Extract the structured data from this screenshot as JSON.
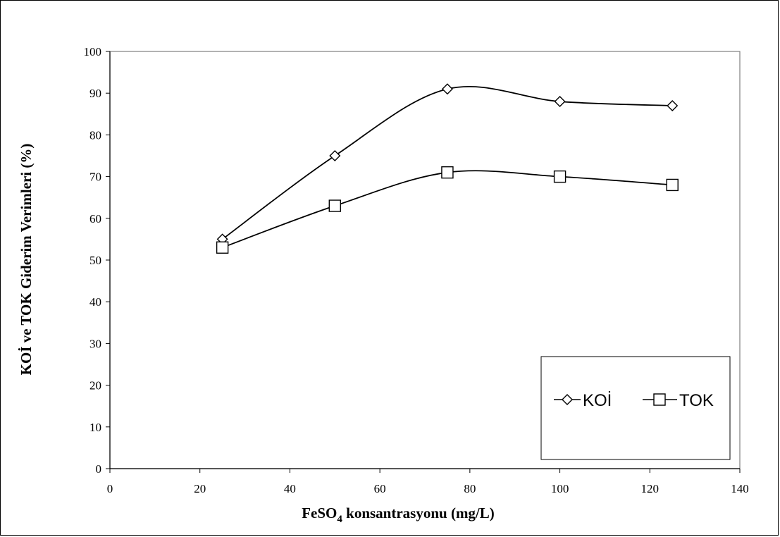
{
  "chart_data": {
    "type": "line",
    "title": "",
    "xlabel": {
      "prefix": "FeSO",
      "subscript": "4",
      "suffix": " konsantrasyonu (mg/L)"
    },
    "ylabel": "KOİ ve TOK Giderim Verimleri (%)",
    "xlim": [
      0,
      140
    ],
    "ylim": [
      0,
      100
    ],
    "xticks": [
      0,
      20,
      40,
      60,
      80,
      100,
      120,
      140
    ],
    "yticks": [
      0,
      10,
      20,
      30,
      40,
      50,
      60,
      70,
      80,
      90,
      100
    ],
    "x": [
      25,
      50,
      75,
      100,
      125
    ],
    "series": [
      {
        "name": "KOİ",
        "marker": "diamond",
        "color": "#000000",
        "values": [
          55,
          75,
          91,
          88,
          87
        ]
      },
      {
        "name": "TOK",
        "marker": "square",
        "color": "#000000",
        "values": [
          53,
          63,
          71,
          70,
          68
        ]
      }
    ],
    "smooth": true,
    "grid": false,
    "legend": "lower-right"
  }
}
